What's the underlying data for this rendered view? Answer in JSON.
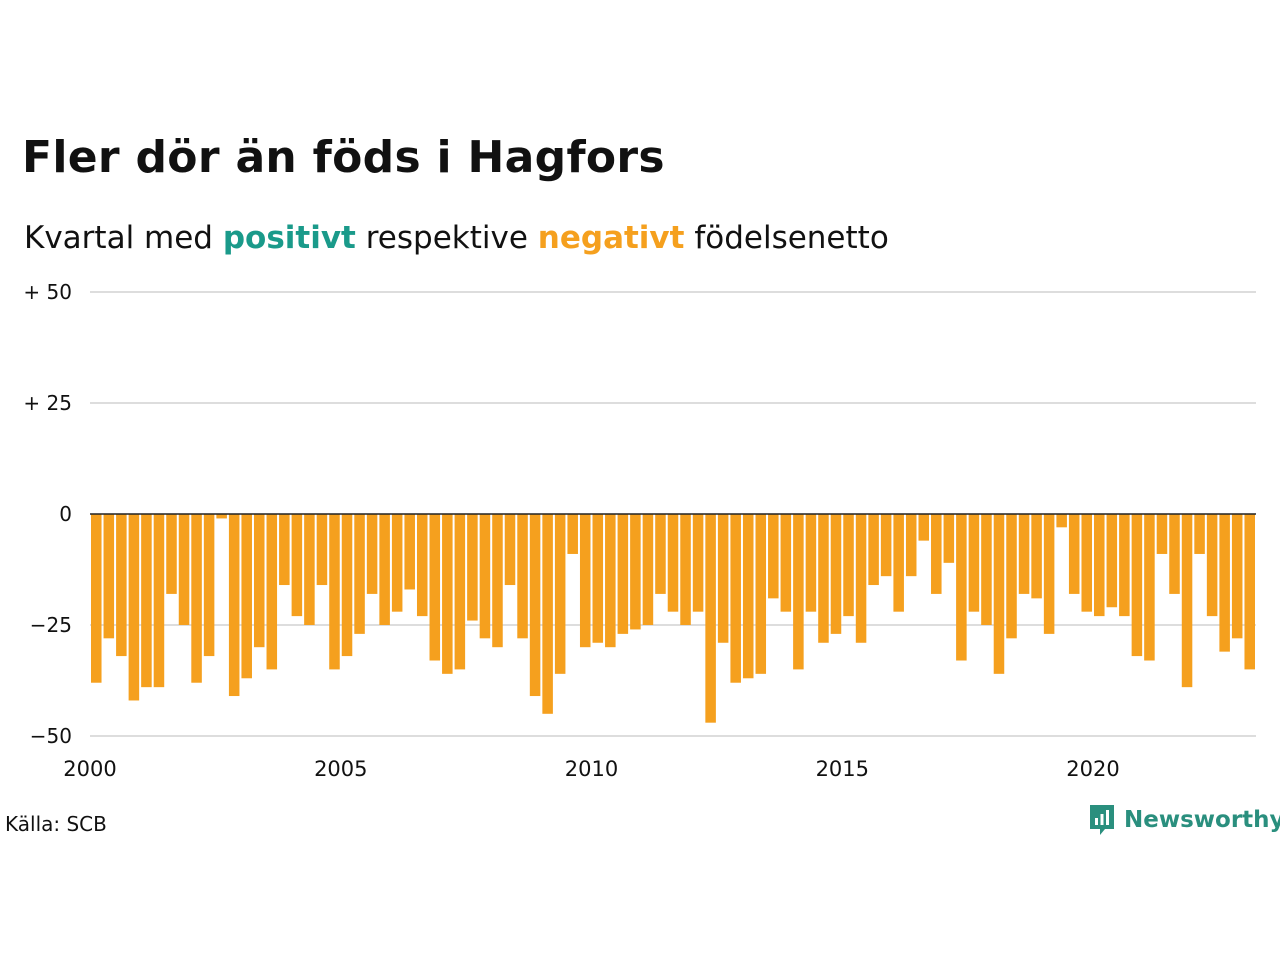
{
  "title": "Fler dör än föds i Hagfors",
  "subtitle": {
    "prefix": "Kvartal med ",
    "positive": "positivt",
    "middle": " respektive ",
    "negative": "negativt",
    "suffix": " födelsenetto"
  },
  "source": "Källa: SCB",
  "brand": "Newsworthy",
  "colors": {
    "positive": "#1a9a8a",
    "negative": "#f5a01e",
    "brand": "#2a8f7e",
    "grid": "#dddddd"
  },
  "chart_data": {
    "type": "bar",
    "ylim": [
      -50,
      50
    ],
    "ytick_labels": [
      {
        "value": 50,
        "label": "+ 50"
      },
      {
        "value": 25,
        "label": "+ 25"
      },
      {
        "value": 0,
        "label": "0"
      },
      {
        "value": -25,
        "label": "−25"
      },
      {
        "value": -50,
        "label": "−50"
      }
    ],
    "xtick_labels": [
      "2000",
      "2005",
      "2010",
      "2015",
      "2020"
    ],
    "period_start": "2000 Q1",
    "period_end": "2023 Q1",
    "grid": true,
    "values": [
      -38,
      -28,
      -32,
      -42,
      -39,
      -39,
      -18,
      -25,
      -38,
      -32,
      -1,
      -41,
      -37,
      -30,
      -35,
      -16,
      -23,
      -25,
      -16,
      -35,
      -32,
      -27,
      -18,
      -25,
      -22,
      -17,
      -23,
      -33,
      -36,
      -35,
      -24,
      -28,
      -30,
      -16,
      -28,
      -41,
      -45,
      -36,
      -9,
      -30,
      -29,
      -30,
      -27,
      -26,
      -25,
      -18,
      -22,
      -25,
      -22,
      -47,
      -29,
      -38,
      -37,
      -36,
      -19,
      -22,
      -35,
      -22,
      -29,
      -27,
      -23,
      -29,
      -16,
      -14,
      -22,
      -14,
      -6,
      -18,
      -11,
      -33,
      -22,
      -25,
      -36,
      -28,
      -18,
      -19,
      -27,
      -3,
      -18,
      -22,
      -23,
      -21,
      -23,
      -32,
      -33,
      -9,
      -18,
      -39,
      -9,
      -23,
      -31,
      -28,
      -35
    ]
  }
}
